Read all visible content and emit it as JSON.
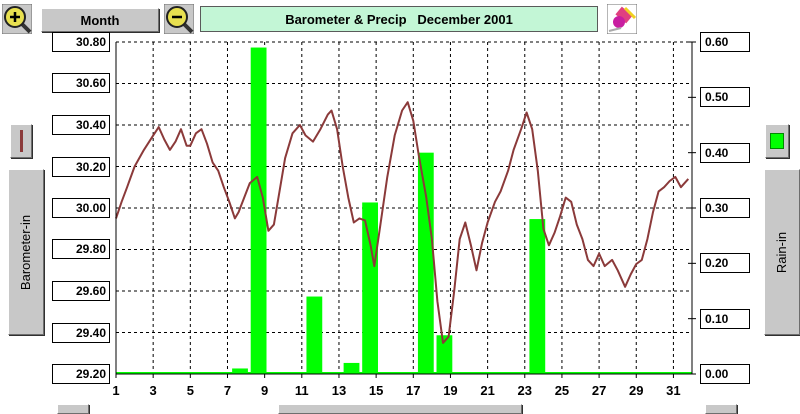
{
  "toolbar": {
    "zoom_in_icon": "magnifier-plus-icon",
    "zoom_out_icon": "magnifier-minus-icon",
    "period_label": "Month",
    "title": "Barometer & Precip   December 2001",
    "clear_icon": "eraser-icon"
  },
  "legend": {
    "barometer_color": "#8b3a3a",
    "rain_color": "#00ff00",
    "left_axis_button": "Barometer-in",
    "right_axis_button": "Rain-in"
  },
  "colors": {
    "grid": "#000000",
    "title_bg": "#c3f6d6",
    "button_face": "#c8c8c8"
  },
  "chart_data": {
    "type": "bar",
    "title": "Barometer & Precip   December 2001",
    "xlabel": "",
    "xlim": [
      1,
      32
    ],
    "xticks": [
      "1",
      "3",
      "5",
      "7",
      "9",
      "11",
      "13",
      "15",
      "17",
      "19",
      "21",
      "23",
      "25",
      "27",
      "29",
      "31"
    ],
    "grid": true,
    "y_left": {
      "label": "Barometer-in",
      "ylim": [
        29.2,
        30.8
      ],
      "ticks": [
        "30.80",
        "30.60",
        "30.40",
        "30.20",
        "30.00",
        "29.80",
        "29.60",
        "29.40",
        "29.20"
      ]
    },
    "y_right": {
      "label": "Rain-in",
      "ylim": [
        0,
        0.6
      ],
      "ticks": [
        "0.60",
        "0.50",
        "0.40",
        "0.30",
        "0.20",
        "0.10",
        "0.00"
      ]
    },
    "series": [
      {
        "name": "Rain-in",
        "type": "bar",
        "axis": "right",
        "color": "#00ff00",
        "x": [
          7.6,
          8.6,
          11.6,
          13.6,
          14.6,
          17.6,
          18.6,
          23.6
        ],
        "values": [
          0.01,
          0.59,
          0.14,
          0.02,
          0.31,
          0.4,
          0.07,
          0.28
        ]
      },
      {
        "name": "Barometer-in",
        "type": "line",
        "axis": "left",
        "color": "#8b3a3a",
        "points": [
          [
            1.0,
            29.95
          ],
          [
            1.3,
            30.03
          ],
          [
            1.6,
            30.1
          ],
          [
            2.0,
            30.2
          ],
          [
            2.5,
            30.28
          ],
          [
            3.0,
            30.35
          ],
          [
            3.3,
            30.39
          ],
          [
            3.6,
            30.33
          ],
          [
            3.9,
            30.28
          ],
          [
            4.2,
            30.32
          ],
          [
            4.5,
            30.38
          ],
          [
            4.8,
            30.3
          ],
          [
            5.0,
            30.3
          ],
          [
            5.3,
            30.36
          ],
          [
            5.6,
            30.38
          ],
          [
            5.9,
            30.31
          ],
          [
            6.2,
            30.22
          ],
          [
            6.5,
            30.18
          ],
          [
            6.8,
            30.1
          ],
          [
            7.1,
            30.03
          ],
          [
            7.4,
            29.95
          ],
          [
            7.6,
            29.98
          ],
          [
            7.9,
            30.05
          ],
          [
            8.2,
            30.12
          ],
          [
            8.6,
            30.15
          ],
          [
            8.9,
            30.05
          ],
          [
            9.2,
            29.89
          ],
          [
            9.5,
            29.92
          ],
          [
            9.8,
            30.08
          ],
          [
            10.1,
            30.24
          ],
          [
            10.5,
            30.36
          ],
          [
            10.9,
            30.4
          ],
          [
            11.2,
            30.35
          ],
          [
            11.6,
            30.32
          ],
          [
            12.0,
            30.38
          ],
          [
            12.4,
            30.45
          ],
          [
            12.6,
            30.47
          ],
          [
            12.9,
            30.38
          ],
          [
            13.2,
            30.2
          ],
          [
            13.5,
            30.05
          ],
          [
            13.8,
            29.93
          ],
          [
            14.1,
            29.95
          ],
          [
            14.4,
            29.94
          ],
          [
            14.7,
            29.82
          ],
          [
            14.9,
            29.72
          ],
          [
            15.2,
            29.9
          ],
          [
            15.6,
            30.15
          ],
          [
            16.0,
            30.35
          ],
          [
            16.4,
            30.47
          ],
          [
            16.7,
            30.51
          ],
          [
            17.0,
            30.42
          ],
          [
            17.3,
            30.25
          ],
          [
            17.7,
            30.05
          ],
          [
            18.0,
            29.85
          ],
          [
            18.3,
            29.55
          ],
          [
            18.6,
            29.35
          ],
          [
            18.9,
            29.38
          ],
          [
            19.2,
            29.6
          ],
          [
            19.5,
            29.85
          ],
          [
            19.8,
            29.93
          ],
          [
            20.1,
            29.82
          ],
          [
            20.4,
            29.7
          ],
          [
            20.7,
            29.83
          ],
          [
            21.0,
            29.93
          ],
          [
            21.4,
            30.03
          ],
          [
            21.7,
            30.08
          ],
          [
            22.1,
            30.18
          ],
          [
            22.4,
            30.28
          ],
          [
            22.8,
            30.38
          ],
          [
            23.1,
            30.46
          ],
          [
            23.4,
            30.38
          ],
          [
            23.7,
            30.18
          ],
          [
            24.0,
            29.9
          ],
          [
            24.3,
            29.82
          ],
          [
            24.6,
            29.88
          ],
          [
            24.9,
            29.96
          ],
          [
            25.2,
            30.05
          ],
          [
            25.5,
            30.03
          ],
          [
            25.8,
            29.92
          ],
          [
            26.1,
            29.85
          ],
          [
            26.4,
            29.75
          ],
          [
            26.7,
            29.72
          ],
          [
            27.0,
            29.78
          ],
          [
            27.3,
            29.72
          ],
          [
            27.7,
            29.75
          ],
          [
            28.0,
            29.7
          ],
          [
            28.4,
            29.62
          ],
          [
            28.7,
            29.68
          ],
          [
            29.0,
            29.73
          ],
          [
            29.3,
            29.75
          ],
          [
            29.6,
            29.85
          ],
          [
            29.9,
            29.98
          ],
          [
            30.2,
            30.08
          ],
          [
            30.5,
            30.1
          ],
          [
            30.8,
            30.13
          ],
          [
            31.1,
            30.15
          ],
          [
            31.4,
            30.1
          ],
          [
            31.8,
            30.14
          ]
        ]
      }
    ]
  }
}
